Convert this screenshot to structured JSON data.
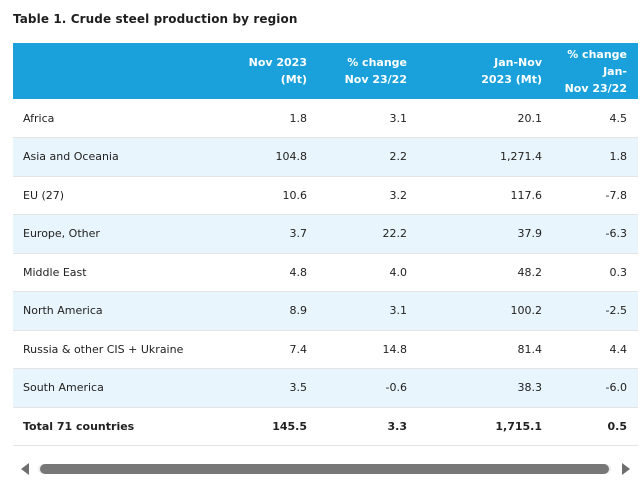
{
  "title": "Table 1. Crude steel production by region",
  "columns": [
    {
      "line1": "",
      "line2": ""
    },
    {
      "line1": "Nov 2023",
      "line2": "(Mt)"
    },
    {
      "line1": "% change",
      "line2": "Nov 23/22"
    },
    {
      "line1": "Jan-Nov",
      "line2": "2023 (Mt)"
    },
    {
      "line1": "% change Jan-",
      "line2": "Nov 23/22"
    }
  ],
  "rows": [
    {
      "region": "Africa",
      "nov2023": "1.8",
      "nov_change": "3.1",
      "ytd2023": "20.1",
      "ytd_change": "4.5"
    },
    {
      "region": "Asia and Oceania",
      "nov2023": "104.8",
      "nov_change": "2.2",
      "ytd2023": "1,271.4",
      "ytd_change": "1.8"
    },
    {
      "region": "EU (27)",
      "nov2023": "10.6",
      "nov_change": "3.2",
      "ytd2023": "117.6",
      "ytd_change": "-7.8"
    },
    {
      "region": "Europe, Other",
      "nov2023": "3.7",
      "nov_change": "22.2",
      "ytd2023": "37.9",
      "ytd_change": "-6.3"
    },
    {
      "region": "Middle East",
      "nov2023": "4.8",
      "nov_change": "4.0",
      "ytd2023": "48.2",
      "ytd_change": "0.3"
    },
    {
      "region": "North America",
      "nov2023": "8.9",
      "nov_change": "3.1",
      "ytd2023": "100.2",
      "ytd_change": "-2.5"
    },
    {
      "region": "Russia & other CIS + Ukraine",
      "nov2023": "7.4",
      "nov_change": "14.8",
      "ytd2023": "81.4",
      "ytd_change": "4.4"
    },
    {
      "region": "South America",
      "nov2023": "3.5",
      "nov_change": "-0.6",
      "ytd2023": "38.3",
      "ytd_change": "-6.0"
    },
    {
      "region": "Total 71 countries",
      "nov2023": "145.5",
      "nov_change": "3.3",
      "ytd2023": "1,715.1",
      "ytd_change": "0.5"
    }
  ],
  "scrollbar": {
    "left_icon": "triangle-left-icon",
    "right_icon": "triangle-right-icon"
  },
  "colors": {
    "header_bg": "#1aa1dc",
    "header_text": "#ffffff",
    "alt_row_bg": "#e8f5fc",
    "row_border": "#e4e4e4",
    "scroll_thumb": "#777777"
  }
}
